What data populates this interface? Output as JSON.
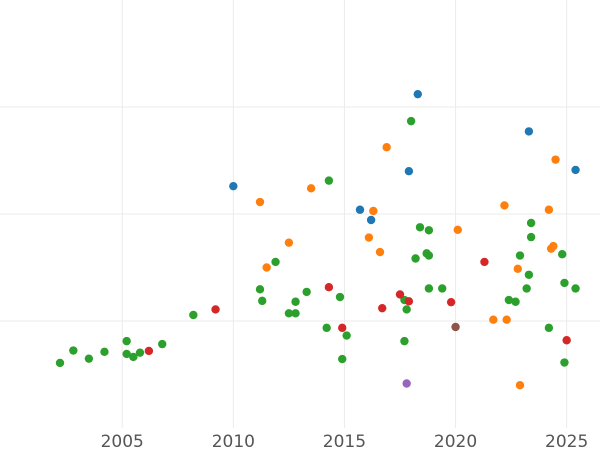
{
  "chart_data": {
    "type": "scatter",
    "title": "",
    "xlabel": "",
    "ylabel": "",
    "xlim": [
      1999.5,
      2026.5
    ],
    "ylim": [
      0,
      100
    ],
    "x_ticks": [
      2005,
      2010,
      2015,
      2020,
      2025
    ],
    "x_tick_labels": [
      "2005",
      "2010",
      "2015",
      "2020",
      "2025"
    ],
    "y_gridlines": [
      25,
      50,
      75
    ],
    "y_ticks_labeled": false,
    "grid": true,
    "legend": "none",
    "series": [
      {
        "name": "blue",
        "color": "#1f77b4",
        "x": [
          2010.0,
          2015.7,
          2016.2,
          2017.9,
          2018.3,
          2023.3,
          2025.4
        ],
        "y": [
          56.5,
          51.0,
          48.6,
          60.0,
          78.0,
          69.3,
          60.3
        ]
      },
      {
        "name": "orange",
        "color": "#ff7f0e",
        "x": [
          2011.2,
          2011.5,
          2012.5,
          2013.5,
          2016.1,
          2016.3,
          2016.6,
          2016.9,
          2020.1,
          2021.7,
          2022.3,
          2022.2,
          2022.8,
          2022.9,
          2024.2,
          2024.3,
          2024.5,
          2024.4
        ],
        "y": [
          52.8,
          37.5,
          43.3,
          56.0,
          44.5,
          50.7,
          41.1,
          65.6,
          46.3,
          25.3,
          25.3,
          52.0,
          37.2,
          10.0,
          51.0,
          41.9,
          62.7,
          42.5
        ]
      },
      {
        "name": "green",
        "color": "#2ca02c",
        "x": [
          2002.2,
          2002.8,
          2003.5,
          2004.2,
          2005.2,
          2005.2,
          2005.5,
          2005.8,
          2006.8,
          2008.2,
          2011.2,
          2011.3,
          2011.9,
          2012.5,
          2012.8,
          2012.8,
          2013.3,
          2014.2,
          2014.3,
          2014.8,
          2014.9,
          2015.1,
          2017.7,
          2017.7,
          2017.8,
          2018.0,
          2018.2,
          2018.4,
          2018.7,
          2018.8,
          2018.8,
          2018.8,
          2019.4,
          2022.4,
          2022.7,
          2022.9,
          2023.2,
          2023.3,
          2023.4,
          2023.4,
          2024.2,
          2024.8,
          2024.9,
          2024.9,
          2025.4
        ],
        "y": [
          15.2,
          18.1,
          16.2,
          17.8,
          20.3,
          17.3,
          16.6,
          17.6,
          19.6,
          26.4,
          32.4,
          29.7,
          38.8,
          26.8,
          26.8,
          29.5,
          31.8,
          23.4,
          57.8,
          30.6,
          16.1,
          21.6,
          20.3,
          29.9,
          27.7,
          71.7,
          39.6,
          46.9,
          40.8,
          40.3,
          46.2,
          32.6,
          32.6,
          29.9,
          29.5,
          40.3,
          32.6,
          35.8,
          47.9,
          44.6,
          23.4,
          40.6,
          33.9,
          15.3,
          32.6
        ]
      },
      {
        "name": "red",
        "color": "#d62728",
        "x": [
          2006.2,
          2009.2,
          2014.3,
          2014.9,
          2016.7,
          2017.5,
          2017.9,
          2019.8,
          2021.3,
          2025.0
        ],
        "y": [
          18.0,
          27.7,
          32.9,
          23.4,
          28.0,
          31.2,
          29.6,
          29.4,
          38.8,
          20.5
        ]
      },
      {
        "name": "purple",
        "color": "#9467bd",
        "x": [
          2017.8
        ],
        "y": [
          10.4
        ]
      },
      {
        "name": "brown",
        "color": "#8c564b",
        "x": [
          2020.0
        ],
        "y": [
          23.6
        ]
      }
    ]
  }
}
